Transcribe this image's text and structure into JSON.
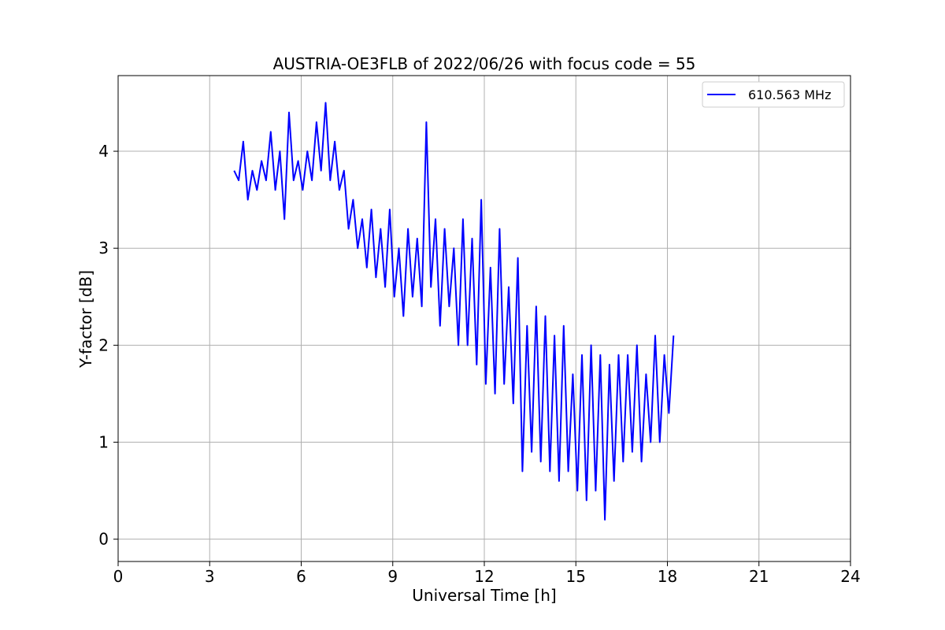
{
  "chart_data": {
    "type": "line",
    "title": "AUSTRIA-OE3FLB of 2022/06/26 with focus code = 55",
    "xlabel": "Universal Time [h]",
    "ylabel": "Y-factor [dB]",
    "xlim": [
      0,
      24
    ],
    "ylim": [
      -0.23,
      4.78
    ],
    "xticks": [
      0,
      3,
      6,
      9,
      12,
      15,
      18,
      21,
      24
    ],
    "yticks": [
      0,
      1,
      2,
      3,
      4
    ],
    "grid": true,
    "legend_position": "top-right",
    "series": [
      {
        "name": "610.563 MHz",
        "color": "#0000ff",
        "x": [
          3.8,
          3.95,
          4.1,
          4.25,
          4.4,
          4.55,
          4.7,
          4.85,
          5.0,
          5.15,
          5.3,
          5.45,
          5.6,
          5.75,
          5.9,
          6.05,
          6.2,
          6.35,
          6.5,
          6.65,
          6.8,
          6.95,
          7.1,
          7.25,
          7.4,
          7.55,
          7.7,
          7.85,
          8.0,
          8.15,
          8.3,
          8.45,
          8.6,
          8.75,
          8.9,
          9.05,
          9.2,
          9.35,
          9.5,
          9.65,
          9.8,
          9.95,
          10.1,
          10.25,
          10.4,
          10.55,
          10.7,
          10.85,
          11.0,
          11.15,
          11.3,
          11.45,
          11.6,
          11.75,
          11.9,
          12.05,
          12.2,
          12.35,
          12.5,
          12.65,
          12.8,
          12.95,
          13.1,
          13.25,
          13.4,
          13.55,
          13.7,
          13.85,
          14.0,
          14.15,
          14.3,
          14.45,
          14.6,
          14.75,
          14.9,
          15.05,
          15.2,
          15.35,
          15.5,
          15.65,
          15.8,
          15.95,
          16.1,
          16.25,
          16.4,
          16.55,
          16.7,
          16.85,
          17.0,
          17.15,
          17.3,
          17.45,
          17.6,
          17.75,
          17.9,
          18.05,
          18.2
        ],
        "y": [
          3.8,
          3.7,
          4.1,
          3.5,
          3.8,
          3.6,
          3.9,
          3.7,
          4.2,
          3.6,
          4.0,
          3.3,
          4.4,
          3.7,
          3.9,
          3.6,
          4.0,
          3.7,
          4.3,
          3.8,
          4.5,
          3.7,
          4.1,
          3.6,
          3.8,
          3.2,
          3.5,
          3.0,
          3.3,
          2.8,
          3.4,
          2.7,
          3.2,
          2.6,
          3.4,
          2.5,
          3.0,
          2.3,
          3.2,
          2.5,
          3.1,
          2.4,
          4.3,
          2.6,
          3.3,
          2.2,
          3.2,
          2.4,
          3.0,
          2.0,
          3.3,
          2.0,
          3.1,
          1.8,
          3.5,
          1.6,
          2.8,
          1.5,
          3.2,
          1.6,
          2.6,
          1.4,
          2.9,
          0.7,
          2.2,
          0.9,
          2.4,
          0.8,
          2.3,
          0.7,
          2.1,
          0.6,
          2.2,
          0.7,
          1.7,
          0.5,
          1.9,
          0.4,
          2.0,
          0.5,
          1.9,
          0.2,
          1.8,
          0.6,
          1.9,
          0.8,
          1.9,
          0.9,
          2.0,
          0.8,
          1.7,
          1.0,
          2.1,
          1.0,
          1.9,
          1.3,
          2.1
        ]
      }
    ]
  }
}
